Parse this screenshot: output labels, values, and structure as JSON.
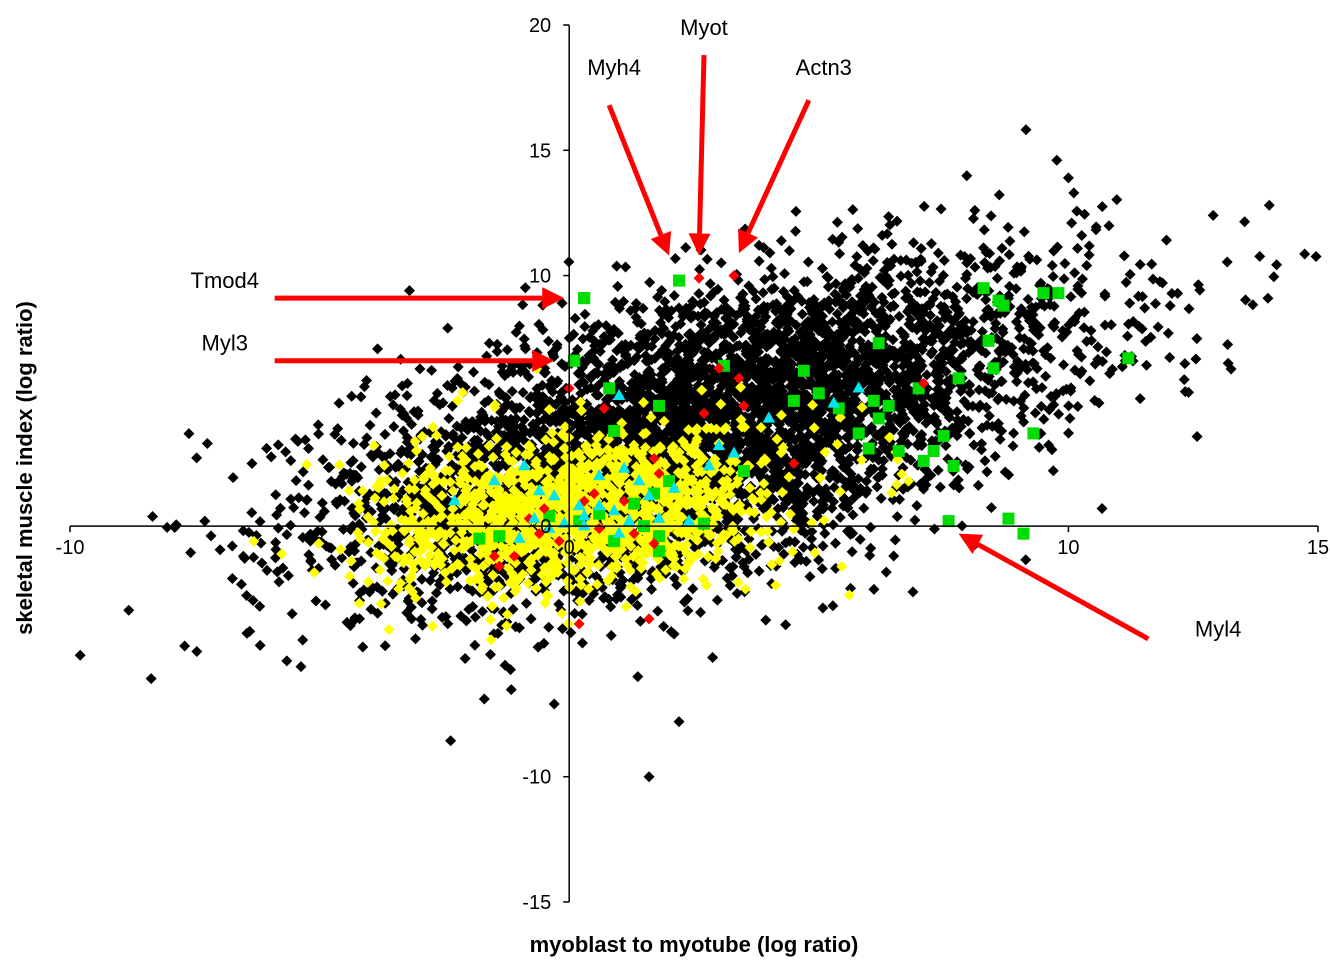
{
  "chart_data": {
    "type": "scatter",
    "xlabel": "myoblast to myotube (log ratio)",
    "ylabel": "skeletal muscle index (log ratio)",
    "xlim": [
      -10,
      15
    ],
    "ylim": [
      -15,
      20
    ],
    "x_ticks": [
      -10,
      0,
      10,
      15
    ],
    "y_ticks": [
      -15,
      -10,
      0,
      10,
      15,
      20
    ],
    "x_tick_labels": [
      "-10",
      "0",
      "10",
      "15"
    ],
    "y_tick_labels": [
      "-15",
      "-10",
      "0",
      "10",
      "15",
      "20"
    ],
    "grid": false,
    "legend": "none",
    "series": [
      {
        "marker": "diamond",
        "color": "#000000",
        "clouds": [
          {
            "cx": 3.2,
            "cy": 4.5,
            "sx": 3.6,
            "sy": 3.0,
            "rho": 0.55,
            "n": 4200
          },
          {
            "cx": 0.5,
            "cy": 1.0,
            "sx": 2.4,
            "sy": 2.1,
            "rho": 0.3,
            "n": 1500
          }
        ],
        "outliers": [
          [
            -7.3,
            0.2
          ],
          [
            -6.2,
            -3.2
          ],
          [
            -6.4,
            -4.2
          ],
          [
            -3.2,
            9.4
          ],
          [
            1.6,
            -10.0
          ],
          [
            -1.7,
            -6.9
          ],
          [
            2.2,
            -7.8
          ],
          [
            12.9,
            12.4
          ],
          [
            13.2,
            6.5
          ],
          [
            -4.5,
            1.0
          ],
          [
            12.0,
            7.7
          ],
          [
            10.0,
            13.9
          ],
          [
            -0.3,
            -7.1
          ]
        ]
      },
      {
        "marker": "diamond",
        "color": "#ffff00",
        "clouds": [
          {
            "cx": 0.2,
            "cy": 0.6,
            "sx": 2.0,
            "sy": 1.6,
            "rho": 0.25,
            "n": 1300
          }
        ],
        "outliers": [
          [
            2.1,
            -1.3
          ],
          [
            3.0,
            3.3
          ],
          [
            -3.3,
            -0.2
          ]
        ]
      },
      {
        "marker": "square",
        "color": "#00dd00",
        "points": [
          [
            0.3,
            9.1
          ],
          [
            0.1,
            6.6
          ],
          [
            2.2,
            9.8
          ],
          [
            3.1,
            6.4
          ],
          [
            0.8,
            5.5
          ],
          [
            1.8,
            4.8
          ],
          [
            0.9,
            3.8
          ],
          [
            4.7,
            6.2
          ],
          [
            4.5,
            5.0
          ],
          [
            5.0,
            5.3
          ],
          [
            5.4,
            4.7
          ],
          [
            6.1,
            5.0
          ],
          [
            6.2,
            4.3
          ],
          [
            5.8,
            3.7
          ],
          [
            6.0,
            3.1
          ],
          [
            6.4,
            4.8
          ],
          [
            6.2,
            7.3
          ],
          [
            6.6,
            3.0
          ],
          [
            7.5,
            3.6
          ],
          [
            7.0,
            5.5
          ],
          [
            7.8,
            5.9
          ],
          [
            8.5,
            6.3
          ],
          [
            8.4,
            7.4
          ],
          [
            8.3,
            9.5
          ],
          [
            8.6,
            9.0
          ],
          [
            8.7,
            8.8
          ],
          [
            8.4,
            7.4
          ],
          [
            9.5,
            9.3
          ],
          [
            9.8,
            9.3
          ],
          [
            11.2,
            6.7
          ],
          [
            9.3,
            3.7
          ],
          [
            7.1,
            2.6
          ],
          [
            7.3,
            3.0
          ],
          [
            7.7,
            2.4
          ],
          [
            3.5,
            2.2
          ],
          [
            2.7,
            0.1
          ],
          [
            1.7,
            1.3
          ],
          [
            1.5,
            0.0
          ],
          [
            0.6,
            0.5
          ],
          [
            1.3,
            0.9
          ],
          [
            0.9,
            -0.6
          ],
          [
            1.8,
            -0.4
          ],
          [
            1.8,
            -1.0
          ],
          [
            -1.8,
            -0.5
          ],
          [
            -1.4,
            -0.4
          ],
          [
            0.2,
            0.2
          ],
          [
            9.1,
            -0.3
          ],
          [
            8.8,
            0.3
          ],
          [
            2.0,
            1.8
          ],
          [
            -0.4,
            0.4
          ]
        ],
        "labeled": [
          [
            0.3,
            9.1
          ],
          [
            0.1,
            6.6
          ],
          [
            7.6,
            0.2
          ]
        ]
      },
      {
        "marker": "diamond",
        "color": "#ff0000",
        "points": [
          [
            2.6,
            9.9
          ],
          [
            3.3,
            10.0
          ],
          [
            0.0,
            5.5
          ],
          [
            0.7,
            4.7
          ],
          [
            2.7,
            4.5
          ],
          [
            3.5,
            4.8
          ],
          [
            3.0,
            6.3
          ],
          [
            3.4,
            5.9
          ],
          [
            7.1,
            5.7
          ],
          [
            4.5,
            2.5
          ],
          [
            1.7,
            2.7
          ],
          [
            1.8,
            2.1
          ],
          [
            -1.5,
            -1.2
          ],
          [
            -1.4,
            -1.6
          ],
          [
            -1.1,
            -1.2
          ],
          [
            -0.8,
            0.3
          ],
          [
            -0.5,
            0.7
          ],
          [
            0.3,
            1.0
          ],
          [
            0.6,
            -0.1
          ],
          [
            1.1,
            1.0
          ],
          [
            1.3,
            -0.3
          ],
          [
            1.7,
            -0.7
          ],
          [
            -0.2,
            -0.6
          ],
          [
            0.2,
            -3.9
          ],
          [
            1.6,
            -3.7
          ],
          [
            -0.6,
            -0.3
          ],
          [
            0.5,
            1.3
          ]
        ]
      },
      {
        "marker": "triangle",
        "color": "#00e5ee",
        "points": [
          [
            1.0,
            5.2
          ],
          [
            3.0,
            3.2
          ],
          [
            3.3,
            2.9
          ],
          [
            2.8,
            2.4
          ],
          [
            5.8,
            5.5
          ],
          [
            5.3,
            4.9
          ],
          [
            4.0,
            4.3
          ],
          [
            -2.3,
            1.0
          ],
          [
            -1.5,
            1.8
          ],
          [
            -0.9,
            2.4
          ],
          [
            -0.6,
            1.4
          ],
          [
            -0.3,
            1.2
          ],
          [
            -0.7,
            0.3
          ],
          [
            -0.4,
            -0.1
          ],
          [
            0.2,
            0.8
          ],
          [
            0.3,
            0.4
          ],
          [
            0.6,
            0.8
          ],
          [
            0.9,
            0.6
          ],
          [
            1.2,
            0.2
          ],
          [
            1.6,
            1.2
          ],
          [
            1.8,
            0.3
          ],
          [
            1.0,
            -0.3
          ],
          [
            0.3,
            0.0
          ],
          [
            -0.1,
            0.1
          ],
          [
            0.6,
            2.0
          ],
          [
            1.4,
            1.8
          ],
          [
            2.1,
            1.5
          ],
          [
            2.4,
            0.2
          ],
          [
            -1.0,
            -0.5
          ],
          [
            1.1,
            2.3
          ]
        ]
      }
    ]
  },
  "annotations": [
    {
      "label": "Myot",
      "text_x": 2.7,
      "text_y": 19.6
    },
    {
      "label": "Myh4",
      "text_x": 0.9,
      "text_y": 18.0
    },
    {
      "label": "Actn3",
      "text_x": 5.1,
      "text_y": 18.0
    },
    {
      "label": "Tmod4",
      "text_x": -6.9,
      "text_y": 9.5
    },
    {
      "label": "Myl3",
      "text_x": -6.9,
      "text_y": 7.0
    },
    {
      "label": "Myl4",
      "text_x": 13.0,
      "text_y": -4.4
    }
  ],
  "arrows": [
    {
      "x1": 2.7,
      "y1": 18.8,
      "x2": 2.6,
      "y2": 10.8
    },
    {
      "x1": 0.8,
      "y1": 16.8,
      "x2": 2.0,
      "y2": 10.8
    },
    {
      "x1": 4.8,
      "y1": 17.0,
      "x2": 3.4,
      "y2": 10.9
    },
    {
      "x1": -5.9,
      "y1": 9.1,
      "x2": -0.1,
      "y2": 9.1
    },
    {
      "x1": -5.9,
      "y1": 6.6,
      "x2": -0.3,
      "y2": 6.6
    },
    {
      "x1": 11.6,
      "y1": -4.5,
      "x2": 7.8,
      "y2": -0.3
    }
  ],
  "colors": {
    "arrow": "#ff0000",
    "axis": "#000000"
  }
}
